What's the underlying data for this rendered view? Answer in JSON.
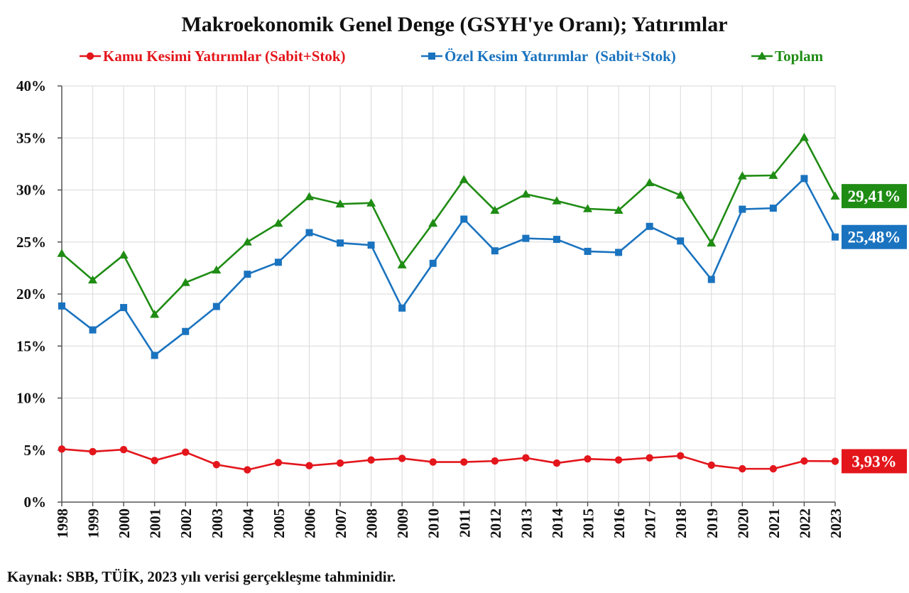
{
  "chart_data": {
    "type": "line",
    "title": "Makroekonomik Genel Denge (GSYH'ye Oranı); Yatırımlar",
    "xlabel": "",
    "ylabel": "",
    "x": [
      "1998",
      "1999",
      "2000",
      "2001",
      "2002",
      "2003",
      "2004",
      "2005",
      "2006",
      "2007",
      "2008",
      "2009",
      "2010",
      "2011",
      "2012",
      "2013",
      "2014",
      "2015",
      "2016",
      "2017",
      "2018",
      "2019",
      "2020",
      "2021",
      "2022",
      "2023"
    ],
    "ylim": [
      0,
      40
    ],
    "y_ticks": [
      "0%",
      "5%",
      "10%",
      "15%",
      "20%",
      "25%",
      "30%",
      "35%",
      "40%"
    ],
    "grid": true,
    "legend_position": "top",
    "series": [
      {
        "name": "Kamu Kesimi Yatırımlar (Sabit+Stok)",
        "color": "#e3161c",
        "marker": "circle",
        "values": [
          5.1,
          4.85,
          5.05,
          4.0,
          4.8,
          3.6,
          3.1,
          3.8,
          3.5,
          3.75,
          4.05,
          4.2,
          3.85,
          3.85,
          3.95,
          4.25,
          3.75,
          4.15,
          4.05,
          4.25,
          4.45,
          3.55,
          3.2,
          3.2,
          3.95,
          3.93
        ],
        "end_label": "3,93%"
      },
      {
        "name": "Özel Kesim Yatırımlar  (Sabit+Stok)",
        "color": "#1a73bf",
        "marker": "square",
        "values": [
          18.85,
          16.55,
          18.7,
          14.1,
          16.4,
          18.8,
          21.9,
          23.05,
          25.9,
          24.9,
          24.7,
          18.65,
          22.95,
          27.2,
          24.15,
          25.35,
          25.25,
          24.1,
          24.0,
          26.5,
          25.1,
          21.4,
          28.15,
          28.25,
          31.1,
          25.48
        ],
        "end_label": "25,48%"
      },
      {
        "name": "Toplam",
        "color": "#1f8c14",
        "marker": "triangle",
        "values": [
          23.9,
          21.35,
          23.75,
          18.05,
          21.1,
          22.3,
          25.0,
          26.8,
          29.35,
          28.65,
          28.75,
          22.8,
          26.8,
          31.0,
          28.05,
          29.6,
          28.95,
          28.2,
          28.05,
          30.7,
          29.5,
          24.9,
          31.35,
          31.4,
          35.05,
          29.41
        ],
        "end_label": "29,41%"
      }
    ]
  },
  "source_note": "Kaynak: SBB, TÜİK, 2023 yılı verisi gerçekleşme tahminidir."
}
